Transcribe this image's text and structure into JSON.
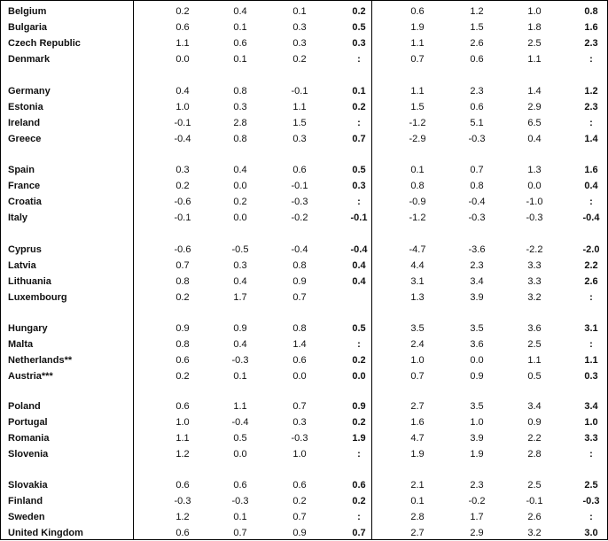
{
  "rows": [
    {
      "country": "Belgium",
      "v": [
        "0.2",
        "0.4",
        "0.1",
        "0.2",
        "0.6",
        "1.2",
        "1.0",
        "0.8"
      ]
    },
    {
      "country": "Bulgaria",
      "v": [
        "0.6",
        "0.1",
        "0.3",
        "0.5",
        "1.9",
        "1.5",
        "1.8",
        "1.6"
      ]
    },
    {
      "country": "Czech Republic",
      "v": [
        "1.1",
        "0.6",
        "0.3",
        "0.3",
        "1.1",
        "2.6",
        "2.5",
        "2.3"
      ]
    },
    {
      "country": "Denmark",
      "v": [
        "0.0",
        "0.1",
        "0.2",
        ":",
        "0.7",
        "0.6",
        "1.1",
        ":"
      ]
    },
    {
      "country": "Germany",
      "v": [
        "0.4",
        "0.8",
        "-0.1",
        "0.1",
        "1.1",
        "2.3",
        "1.4",
        "1.2"
      ]
    },
    {
      "country": "Estonia",
      "v": [
        "1.0",
        "0.3",
        "1.1",
        "0.2",
        "1.5",
        "0.6",
        "2.9",
        "2.3"
      ]
    },
    {
      "country": "Ireland",
      "v": [
        "-0.1",
        "2.8",
        "1.5",
        ":",
        "-1.2",
        "5.1",
        "6.5",
        ":"
      ]
    },
    {
      "country": "Greece",
      "v": [
        "-0.4",
        "0.8",
        "0.3",
        "0.7",
        "-2.9",
        "-0.3",
        "0.4",
        "1.4"
      ]
    },
    {
      "country": "Spain",
      "v": [
        "0.3",
        "0.4",
        "0.6",
        "0.5",
        "0.1",
        "0.7",
        "1.3",
        "1.6"
      ]
    },
    {
      "country": "France",
      "v": [
        "0.2",
        "0.0",
        "-0.1",
        "0.3",
        "0.8",
        "0.8",
        "0.0",
        "0.4"
      ]
    },
    {
      "country": "Croatia",
      "v": [
        "-0.6",
        "0.2",
        "-0.3",
        ":",
        "-0.9",
        "-0.4",
        "-1.0",
        ":"
      ]
    },
    {
      "country": "Italy",
      "v": [
        "-0.1",
        "0.0",
        "-0.2",
        "-0.1",
        "-1.2",
        "-0.3",
        "-0.3",
        "-0.4"
      ]
    },
    {
      "country": "Cyprus",
      "v": [
        "-0.6",
        "-0.5",
        "-0.4",
        "-0.4",
        "-4.7",
        "-3.6",
        "-2.2",
        "-2.0"
      ]
    },
    {
      "country": "Latvia",
      "v": [
        "0.7",
        "0.3",
        "0.8",
        "0.4",
        "4.4",
        "2.3",
        "3.3",
        "2.2"
      ]
    },
    {
      "country": "Lithuania",
      "v": [
        "0.8",
        "0.4",
        "0.9",
        "0.4",
        "3.1",
        "3.4",
        "3.3",
        "2.6"
      ]
    },
    {
      "country": "Luxembourg",
      "v": [
        "0.2",
        "1.7",
        "0.7",
        "",
        "1.3",
        "3.9",
        "3.2",
        ":"
      ]
    },
    {
      "country": "Hungary",
      "v": [
        "0.9",
        "0.9",
        "0.8",
        "0.5",
        "3.5",
        "3.5",
        "3.6",
        "3.1"
      ]
    },
    {
      "country": "Malta",
      "v": [
        "0.8",
        "0.4",
        "1.4",
        ":",
        "2.4",
        "3.6",
        "2.5",
        ":"
      ]
    },
    {
      "country": "Netherlands**",
      "v": [
        "0.6",
        "-0.3",
        "0.6",
        "0.2",
        "1.0",
        "0.0",
        "1.1",
        "1.1"
      ]
    },
    {
      "country": "Austria***",
      "v": [
        "0.2",
        "0.1",
        "0.0",
        "0.0",
        "0.7",
        "0.9",
        "0.5",
        "0.3"
      ]
    },
    {
      "country": "Poland",
      "v": [
        "0.6",
        "1.1",
        "0.7",
        "0.9",
        "2.7",
        "3.5",
        "3.4",
        "3.4"
      ]
    },
    {
      "country": "Portugal",
      "v": [
        "1.0",
        "-0.4",
        "0.3",
        "0.2",
        "1.6",
        "1.0",
        "0.9",
        "1.0"
      ]
    },
    {
      "country": "Romania",
      "v": [
        "1.1",
        "0.5",
        "-0.3",
        "1.9",
        "4.7",
        "3.9",
        "2.2",
        "3.3"
      ]
    },
    {
      "country": "Slovenia",
      "v": [
        "1.2",
        "0.0",
        "1.0",
        ":",
        "1.9",
        "1.9",
        "2.8",
        ":"
      ]
    },
    {
      "country": "Slovakia",
      "v": [
        "0.6",
        "0.6",
        "0.6",
        "0.6",
        "2.1",
        "2.3",
        "2.5",
        "2.5"
      ]
    },
    {
      "country": "Finland",
      "v": [
        "-0.3",
        "-0.3",
        "0.2",
        "0.2",
        "0.1",
        "-0.2",
        "-0.1",
        "-0.3"
      ]
    },
    {
      "country": "Sweden",
      "v": [
        "1.2",
        "0.1",
        "0.7",
        ":",
        "2.8",
        "1.7",
        "2.6",
        ":"
      ]
    },
    {
      "country": "United Kingdom",
      "v": [
        "0.6",
        "0.7",
        "0.9",
        "0.7",
        "2.7",
        "2.9",
        "3.2",
        "3.0"
      ]
    }
  ]
}
